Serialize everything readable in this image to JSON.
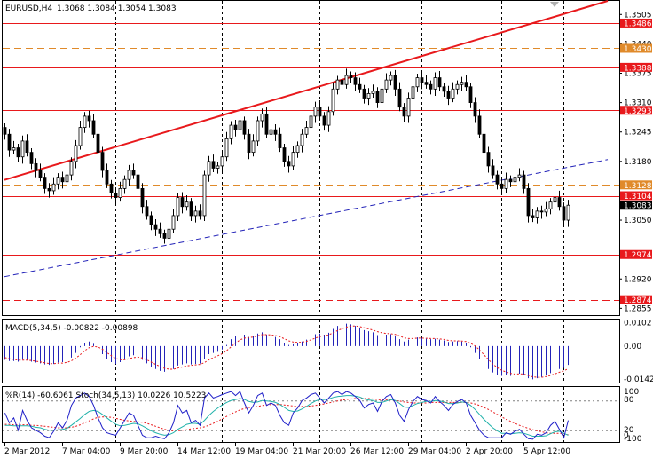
{
  "chart_data": {
    "type": "candlestick",
    "symbol": "EURUSD,H4",
    "ohlc_label": "1.3068 1.3084 1.3054 1.3083",
    "price_axis": {
      "range": [
        1.284,
        1.3535
      ],
      "ticks": [
        "1.3505",
        "1.3440",
        "1.3375",
        "1.3310",
        "1.3245",
        "1.3180",
        "1.3050",
        "1.2920",
        "1.2855"
      ]
    },
    "current_price": "1.3083",
    "levels": [
      {
        "value": "1.3486",
        "style": "solid",
        "color": "#e8191c"
      },
      {
        "value": "1.3430",
        "style": "dashed",
        "color": "#e08a2a"
      },
      {
        "value": "1.3388",
        "style": "solid",
        "color": "#e8191c"
      },
      {
        "value": "1.3293",
        "style": "solid",
        "color": "#e8191c"
      },
      {
        "value": "1.3128",
        "style": "dashed",
        "color": "#e08a2a"
      },
      {
        "value": "1.3104",
        "style": "solid",
        "color": "#e8191c"
      },
      {
        "value": "1.2974",
        "style": "solid",
        "color": "#e8191c"
      },
      {
        "value": "1.2874",
        "style": "dashed",
        "color": "#e8191c"
      }
    ],
    "trendlines": [
      {
        "color": "#e8191c",
        "style": "solid",
        "from": [
          0,
          1.3139
        ],
        "to": [
          136,
          1.3535
        ]
      },
      {
        "color": "#2323b8",
        "style": "dashed",
        "from": [
          0,
          1.2925
        ],
        "to": [
          136,
          1.3184
        ]
      }
    ],
    "x_labels": [
      "2 Mar 2012",
      "7 Mar 04:00",
      "9 Mar 20:00",
      "14 Mar 12:00",
      "19 Mar 04:00",
      "21 Mar 20:00",
      "26 Mar 12:00",
      "29 Mar 04:00",
      "2 Apr 20:00",
      "5 Apr 12:00"
    ],
    "x_label_bars": [
      0,
      13,
      26,
      39,
      52,
      65,
      78,
      91,
      104,
      117
    ],
    "period_separators": [
      25,
      49,
      71,
      94,
      112,
      126
    ],
    "closes": [
      1.324,
      1.3205,
      1.321,
      1.319,
      1.3225,
      1.32,
      1.3175,
      1.316,
      1.3145,
      1.312,
      1.3115,
      1.313,
      1.3145,
      1.3135,
      1.315,
      1.318,
      1.3215,
      1.3255,
      1.328,
      1.327,
      1.324,
      1.32,
      1.316,
      1.313,
      1.311,
      1.31,
      1.312,
      1.314,
      1.316,
      1.315,
      1.312,
      1.308,
      1.306,
      1.304,
      1.303,
      1.302,
      1.301,
      1.303,
      1.306,
      1.31,
      1.308,
      1.309,
      1.306,
      1.307,
      1.306,
      1.315,
      1.318,
      1.3165,
      1.317,
      1.319,
      1.323,
      1.326,
      1.325,
      1.327,
      1.324,
      1.32,
      1.3225,
      1.327,
      1.3285,
      1.324,
      1.325,
      1.324,
      1.321,
      1.318,
      1.317,
      1.32,
      1.3215,
      1.324,
      1.3255,
      1.328,
      1.33,
      1.328,
      1.326,
      1.329,
      1.334,
      1.336,
      1.335,
      1.337,
      1.3365,
      1.335,
      1.334,
      1.332,
      1.333,
      1.3335,
      1.331,
      1.334,
      1.336,
      1.337,
      1.334,
      1.33,
      1.328,
      1.332,
      1.3345,
      1.3365,
      1.3355,
      1.335,
      1.334,
      1.3365,
      1.3345,
      1.3335,
      1.332,
      1.334,
      1.335,
      1.3355,
      1.3345,
      1.331,
      1.328,
      1.324,
      1.32,
      1.317,
      1.315,
      1.313,
      1.312,
      1.314,
      1.3135,
      1.3145,
      1.315,
      1.312,
      1.306,
      1.3055,
      1.307,
      1.3068,
      1.3075,
      1.309,
      1.31,
      1.308,
      1.305,
      1.3083
    ],
    "macd": {
      "label": "MACD(5,34,5) -0.00822 -0.00898",
      "ticks": [
        "0.0102",
        "0.00",
        "-0.01429"
      ],
      "range": [
        -0.0155,
        0.0108
      ],
      "histogram": [
        -0.006,
        -0.0065,
        -0.0065,
        -0.0068,
        -0.006,
        -0.0062,
        -0.0068,
        -0.0072,
        -0.0075,
        -0.008,
        -0.0082,
        -0.0078,
        -0.0072,
        -0.007,
        -0.0065,
        -0.005,
        -0.003,
        -0.0005,
        0.0015,
        0.002,
        0.001,
        -0.001,
        -0.0035,
        -0.0055,
        -0.007,
        -0.0078,
        -0.007,
        -0.006,
        -0.0045,
        -0.004,
        -0.0045,
        -0.006,
        -0.0075,
        -0.009,
        -0.01,
        -0.0108,
        -0.0112,
        -0.0108,
        -0.01,
        -0.0085,
        -0.008,
        -0.0075,
        -0.008,
        -0.0078,
        -0.0076,
        -0.0055,
        -0.0035,
        -0.003,
        -0.0025,
        -0.0015,
        0.0005,
        0.003,
        0.0045,
        0.0055,
        0.005,
        0.004,
        0.0045,
        0.0055,
        0.006,
        0.005,
        0.0048,
        0.004,
        0.003,
        0.0015,
        0.0005,
        0.0008,
        0.0012,
        0.002,
        0.0028,
        0.004,
        0.0052,
        0.0055,
        0.005,
        0.0058,
        0.0075,
        0.0088,
        0.0092,
        0.0098,
        0.0095,
        0.0088,
        0.008,
        0.007,
        0.0065,
        0.006,
        0.0048,
        0.0048,
        0.005,
        0.0052,
        0.0045,
        0.003,
        0.002,
        0.0028,
        0.0032,
        0.0038,
        0.0036,
        0.0032,
        0.003,
        0.0032,
        0.0028,
        0.0025,
        0.0018,
        0.002,
        0.0022,
        0.002,
        0.0015,
        -0.0005,
        -0.003,
        -0.0055,
        -0.008,
        -0.01,
        -0.0115,
        -0.0125,
        -0.013,
        -0.0128,
        -0.013,
        -0.0128,
        -0.012,
        -0.0125,
        -0.014,
        -0.0145,
        -0.014,
        -0.0135,
        -0.0128,
        -0.0118,
        -0.0108,
        -0.01,
        -0.0095,
        -0.0082
      ],
      "signal": [
        -0.005,
        -0.0055,
        -0.0058,
        -0.0061,
        -0.0061,
        -0.0061,
        -0.0063,
        -0.0066,
        -0.0069,
        -0.0073,
        -0.0076,
        -0.0077,
        -0.0075,
        -0.0074,
        -0.0071,
        -0.0064,
        -0.0053,
        -0.0037,
        -0.002,
        -0.0007,
        -0.0001,
        -0.0004,
        -0.0014,
        -0.0028,
        -0.0042,
        -0.0054,
        -0.0059,
        -0.006,
        -0.0055,
        -0.005,
        -0.0048,
        -0.0052,
        -0.006,
        -0.007,
        -0.008,
        -0.0089,
        -0.0097,
        -0.0101,
        -0.0101,
        -0.0096,
        -0.0091,
        -0.0086,
        -0.0084,
        -0.0082,
        -0.008,
        -0.0072,
        -0.006,
        -0.005,
        -0.0042,
        -0.0033,
        -0.002,
        -0.0003,
        0.0013,
        0.0027,
        0.0035,
        0.0037,
        0.004,
        0.0045,
        0.005,
        0.005,
        0.0049,
        0.0046,
        0.0041,
        0.0032,
        0.0023,
        0.0018,
        0.0016,
        0.0017,
        0.0021,
        0.0027,
        0.0035,
        0.0042,
        0.0045,
        0.0049,
        0.0058,
        0.0068,
        0.0076,
        0.0083,
        0.0087,
        0.0088,
        0.0085,
        0.008,
        0.0075,
        0.007,
        0.0063,
        0.0058,
        0.0055,
        0.0054,
        0.0051,
        0.0044,
        0.0036,
        0.0033,
        0.0033,
        0.0035,
        0.0035,
        0.0034,
        0.0033,
        0.0033,
        0.0031,
        0.0029,
        0.0025,
        0.0023,
        0.0023,
        0.0022,
        0.002,
        0.0012,
        0.0001,
        -0.0017,
        -0.0038,
        -0.0059,
        -0.0078,
        -0.0094,
        -0.0106,
        -0.0113,
        -0.0119,
        -0.0122,
        -0.0121,
        -0.0122,
        -0.0128,
        -0.0134,
        -0.0136,
        -0.0136,
        -0.0133,
        -0.0128,
        -0.0121,
        -0.0114,
        -0.0108,
        -0.0099
      ]
    },
    "stoch": {
      "label": "%R(14) -60.6061   Stoch(34,5,13) 10.0226 10.5223",
      "ticks": [
        "100",
        "80",
        "20",
        "0",
        "-100"
      ],
      "wpr": [
        55,
        35,
        45,
        20,
        60,
        40,
        25,
        20,
        15,
        8,
        5,
        18,
        35,
        25,
        40,
        70,
        85,
        90,
        95,
        88,
        70,
        45,
        25,
        15,
        12,
        10,
        25,
        40,
        55,
        50,
        30,
        10,
        5,
        5,
        8,
        5,
        3,
        15,
        35,
        70,
        55,
        60,
        35,
        40,
        30,
        85,
        95,
        85,
        88,
        92,
        95,
        98,
        90,
        98,
        75,
        55,
        70,
        90,
        95,
        70,
        75,
        70,
        50,
        35,
        30,
        55,
        65,
        80,
        85,
        92,
        95,
        85,
        75,
        85,
        95,
        98,
        92,
        98,
        95,
        88,
        80,
        65,
        72,
        75,
        58,
        78,
        88,
        92,
        75,
        50,
        38,
        62,
        78,
        88,
        82,
        80,
        75,
        88,
        78,
        70,
        60,
        72,
        78,
        82,
        75,
        50,
        35,
        20,
        10,
        5,
        5,
        5,
        5,
        15,
        12,
        18,
        22,
        12,
        3,
        2,
        12,
        10,
        15,
        30,
        38,
        22,
        5,
        40
      ],
      "main": [
        30,
        30,
        29,
        29,
        29,
        29,
        28,
        26,
        25,
        22,
        20,
        20,
        21,
        22,
        24,
        30,
        37,
        44,
        52,
        58,
        60,
        58,
        52,
        45,
        38,
        32,
        29,
        30,
        32,
        34,
        33,
        29,
        24,
        19,
        15,
        12,
        10,
        11,
        15,
        22,
        27,
        32,
        34,
        34,
        32,
        40,
        50,
        58,
        65,
        71,
        76,
        80,
        82,
        84,
        82,
        78,
        76,
        77,
        80,
        79,
        78,
        76,
        72,
        66,
        60,
        58,
        59,
        63,
        68,
        74,
        79,
        82,
        82,
        83,
        86,
        88,
        89,
        90,
        90,
        89,
        87,
        83,
        81,
        80,
        76,
        76,
        79,
        82,
        80,
        74,
        67,
        66,
        70,
        74,
        76,
        78,
        78,
        80,
        79,
        77,
        74,
        74,
        75,
        77,
        76,
        70,
        62,
        52,
        42,
        33,
        25,
        19,
        14,
        14,
        13,
        14,
        15,
        14,
        11,
        8,
        8,
        8,
        9,
        13,
        17,
        18,
        14,
        10
      ],
      "signal": [
        32,
        32,
        31,
        31,
        31,
        31,
        30,
        30,
        29,
        28,
        27,
        26,
        25,
        25,
        25,
        26,
        28,
        31,
        35,
        39,
        43,
        46,
        47,
        47,
        46,
        44,
        42,
        40,
        39,
        38,
        37,
        36,
        34,
        31,
        28,
        25,
        22,
        20,
        19,
        19,
        20,
        21,
        23,
        24,
        25,
        27,
        30,
        34,
        38,
        43,
        48,
        53,
        57,
        61,
        64,
        66,
        67,
        68,
        70,
        71,
        72,
        72,
        72,
        71,
        70,
        69,
        68,
        68,
        68,
        69,
        70,
        72,
        73,
        75,
        77,
        79,
        81,
        82,
        83,
        84,
        84,
        84,
        84,
        83,
        82,
        81,
        81,
        81,
        80,
        79,
        77,
        76,
        75,
        75,
        75,
        75,
        76,
        76,
        76,
        76,
        76,
        76,
        76,
        76,
        76,
        75,
        73,
        70,
        66,
        62,
        57,
        52,
        47,
        42,
        38,
        34,
        30,
        27,
        24,
        21,
        19,
        17,
        15,
        14,
        14,
        14,
        13,
        11
      ]
    }
  }
}
